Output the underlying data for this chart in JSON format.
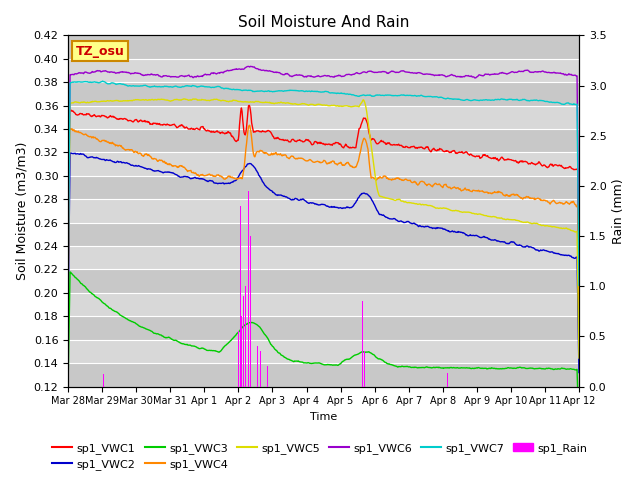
{
  "title": "Soil Moisture And Rain",
  "xlabel": "Time",
  "ylabel_left": "Soil Moisture (m3/m3)",
  "ylabel_right": "Rain (mm)",
  "ylim_left": [
    0.12,
    0.42
  ],
  "ylim_right": [
    0.0,
    3.5
  ],
  "yticks_left": [
    0.12,
    0.14,
    0.16,
    0.18,
    0.2,
    0.22,
    0.24,
    0.26,
    0.28,
    0.3,
    0.32,
    0.34,
    0.36,
    0.38,
    0.4,
    0.42
  ],
  "yticks_right": [
    0.0,
    0.5,
    1.0,
    1.5,
    2.0,
    2.5,
    3.0,
    3.5
  ],
  "colors": {
    "VWC1": "#ff0000",
    "VWC2": "#0000cc",
    "VWC3": "#00cc00",
    "VWC4": "#ff8800",
    "VWC5": "#dddd00",
    "VWC6": "#9900cc",
    "VWC7": "#00cccc",
    "Rain": "#ff00ff"
  },
  "label_box": "TZ_osu",
  "label_box_color": "#ffff88",
  "label_box_edge": "#cc8800",
  "background_color": "#d8d8d8",
  "grid_color": "#ffffff",
  "n_points": 800,
  "tick_labels": [
    "Mar 28",
    "Mar 29",
    "Mar 30",
    "Mar 31",
    "Apr 1",
    "Apr 2",
    "Apr 3",
    "Apr 4",
    "Apr 5",
    "Apr 6",
    "Apr 7",
    "Apr 8",
    "Apr 9",
    "Apr 10",
    "Apr 11",
    "Apr 12"
  ]
}
